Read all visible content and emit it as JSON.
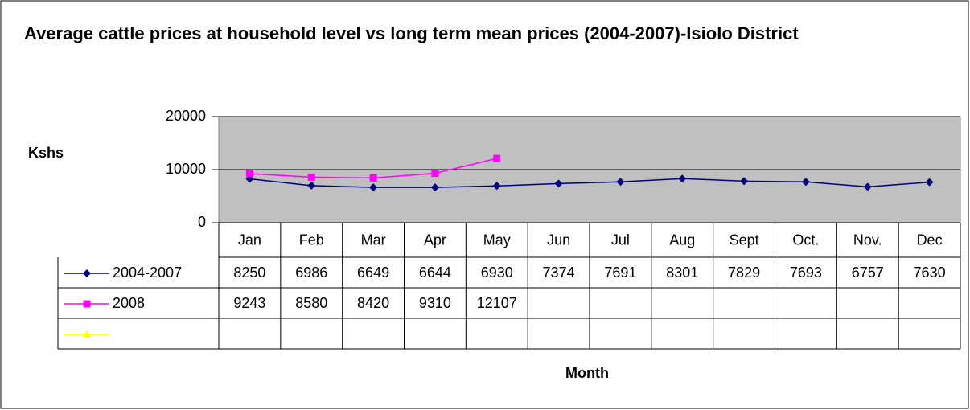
{
  "chart_data": {
    "type": "line",
    "title": "Average cattle prices at household level vs long term mean prices (2004-2007)-Isiolo District",
    "y_label": "Kshs",
    "x_label": "Month",
    "categories": [
      "Jan",
      "Feb",
      "Mar",
      "Apr",
      "May",
      "Jun",
      "Jul",
      "Aug",
      "Sept",
      "Oct.",
      "Nov.",
      "Dec"
    ],
    "series": [
      {
        "name": "2004-2007",
        "color": "#000080",
        "marker": "diamond",
        "values": [
          8250,
          6986,
          6649,
          6644,
          6930,
          7374,
          7691,
          8301,
          7829,
          7693,
          6757,
          7630
        ]
      },
      {
        "name": "2008",
        "color": "#ff00ff",
        "marker": "square",
        "values": [
          9243,
          8580,
          8420,
          9310,
          12107,
          null,
          null,
          null,
          null,
          null,
          null,
          null
        ]
      },
      {
        "name": null,
        "color": "#ffff00",
        "marker": "triangle",
        "values": [
          null,
          null,
          null,
          null,
          null,
          null,
          null,
          null,
          null,
          null,
          null,
          null
        ]
      }
    ],
    "ylim": [
      0,
      20000
    ],
    "yticks": [
      0,
      10000,
      20000
    ],
    "grid": true,
    "data_table": true
  }
}
